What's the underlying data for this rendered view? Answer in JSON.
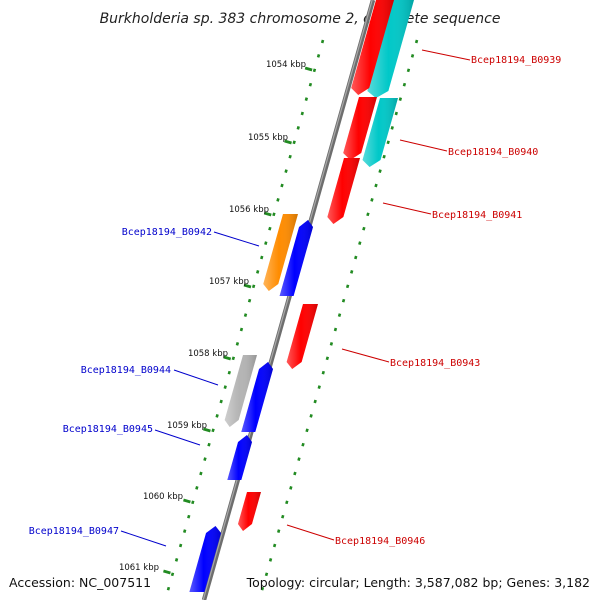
{
  "title": "Burkholderia sp. 383 chromosome 2, complete sequence",
  "footer": {
    "accession": "Accession: NC_007511",
    "topology": "Topology: circular; Length: 3,587,082 bp; Genes: 3,182"
  },
  "colors": {
    "backbone": "#808080",
    "reverse_strand_label": "#0000cc",
    "forward_strand_label": "#cc0000",
    "tick_dots": "#228b22",
    "gene_red": "#ff0000",
    "gene_cyan": "#00c8c8",
    "gene_blue": "#0000ff",
    "gene_orange": "#ff8c00",
    "gene_gray": "#b4b4b4"
  },
  "ticks": [
    "1054 kbp",
    "1055 kbp",
    "1056 kbp",
    "1057 kbp",
    "1058 kbp",
    "1059 kbp",
    "1060 kbp",
    "1061 kbp"
  ],
  "genes": [
    {
      "label": "Bcep18194_B0939",
      "strand": "forward",
      "color": "gene_red"
    },
    {
      "label": "Bcep18194_B0940",
      "strand": "forward",
      "color": "gene_red"
    },
    {
      "label": "Bcep18194_B0941",
      "strand": "forward",
      "color": "gene_red"
    },
    {
      "label": "Bcep18194_B0942",
      "strand": "reverse",
      "color": "gene_blue"
    },
    {
      "label": "Bcep18194_B0943",
      "strand": "forward",
      "color": "gene_red"
    },
    {
      "label": "Bcep18194_B0944",
      "strand": "reverse",
      "color": "gene_blue"
    },
    {
      "label": "Bcep18194_B0945",
      "strand": "reverse",
      "color": "gene_blue"
    },
    {
      "label": "Bcep18194_B0946",
      "strand": "forward",
      "color": "gene_red"
    },
    {
      "label": "Bcep18194_B0947",
      "strand": "reverse",
      "color": "gene_blue"
    }
  ]
}
